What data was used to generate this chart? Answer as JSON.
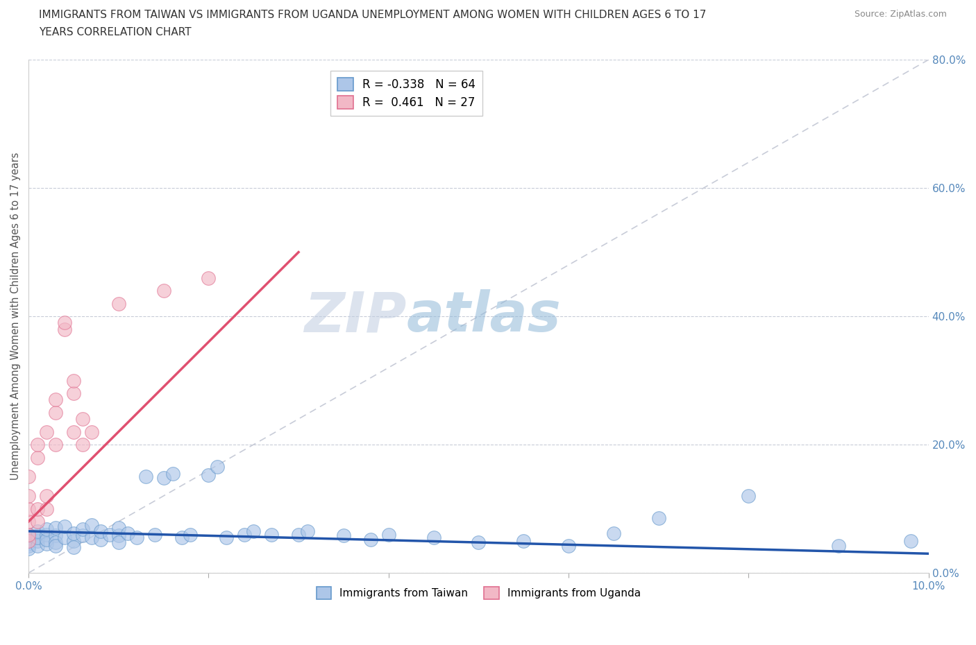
{
  "title_line1": "IMMIGRANTS FROM TAIWAN VS IMMIGRANTS FROM UGANDA UNEMPLOYMENT AMONG WOMEN WITH CHILDREN AGES 6 TO 17",
  "title_line2": "YEARS CORRELATION CHART",
  "source_text": "Source: ZipAtlas.com",
  "ylabel": "Unemployment Among Women with Children Ages 6 to 17 years",
  "xlim": [
    0.0,
    0.1
  ],
  "ylim": [
    0.0,
    0.8
  ],
  "xticks": [
    0.0,
    0.02,
    0.04,
    0.06,
    0.08,
    0.1
  ],
  "yticks": [
    0.0,
    0.2,
    0.4,
    0.6,
    0.8
  ],
  "xticklabels": [
    "0.0%",
    "",
    "",
    "",
    "",
    "10.0%"
  ],
  "yticklabels_right": [
    "0.0%",
    "20.0%",
    "40.0%",
    "60.0%",
    "80.0%"
  ],
  "taiwan_fill_color": "#adc6e8",
  "taiwan_edge_color": "#6699cc",
  "uganda_fill_color": "#f2b8c6",
  "uganda_edge_color": "#e07090",
  "taiwan_line_color": "#2255aa",
  "uganda_line_color": "#e05070",
  "diag_line_color": "#c8ccd8",
  "taiwan_R": -0.338,
  "taiwan_N": 64,
  "uganda_R": 0.461,
  "uganda_N": 27,
  "watermark_zip": "ZIP",
  "watermark_atlas": "atlas",
  "legend_taiwan_label": "Immigrants from Taiwan",
  "legend_uganda_label": "Immigrants from Uganda",
  "taiwan_x": [
    0.0,
    0.0,
    0.0,
    0.0,
    0.0,
    0.0,
    0.0,
    0.0,
    0.001,
    0.001,
    0.001,
    0.001,
    0.001,
    0.002,
    0.002,
    0.002,
    0.002,
    0.003,
    0.003,
    0.003,
    0.003,
    0.004,
    0.004,
    0.005,
    0.005,
    0.005,
    0.006,
    0.006,
    0.007,
    0.007,
    0.008,
    0.008,
    0.009,
    0.01,
    0.01,
    0.01,
    0.011,
    0.012,
    0.013,
    0.014,
    0.015,
    0.016,
    0.017,
    0.018,
    0.02,
    0.021,
    0.022,
    0.024,
    0.025,
    0.027,
    0.03,
    0.031,
    0.035,
    0.038,
    0.04,
    0.045,
    0.05,
    0.055,
    0.06,
    0.065,
    0.07,
    0.08,
    0.09,
    0.098
  ],
  "taiwan_y": [
    0.05,
    0.048,
    0.052,
    0.055,
    0.045,
    0.06,
    0.042,
    0.038,
    0.058,
    0.05,
    0.042,
    0.055,
    0.065,
    0.06,
    0.045,
    0.052,
    0.068,
    0.058,
    0.048,
    0.07,
    0.042,
    0.055,
    0.072,
    0.05,
    0.062,
    0.04,
    0.058,
    0.068,
    0.055,
    0.075,
    0.052,
    0.065,
    0.06,
    0.058,
    0.048,
    0.07,
    0.062,
    0.055,
    0.15,
    0.06,
    0.148,
    0.155,
    0.055,
    0.06,
    0.152,
    0.165,
    0.055,
    0.06,
    0.065,
    0.06,
    0.06,
    0.065,
    0.058,
    0.052,
    0.06,
    0.055,
    0.048,
    0.05,
    0.042,
    0.062,
    0.085,
    0.12,
    0.042,
    0.05
  ],
  "uganda_x": [
    0.0,
    0.0,
    0.0,
    0.0,
    0.0,
    0.0,
    0.001,
    0.001,
    0.001,
    0.001,
    0.002,
    0.002,
    0.002,
    0.003,
    0.003,
    0.003,
    0.004,
    0.004,
    0.005,
    0.005,
    0.005,
    0.006,
    0.006,
    0.007,
    0.01,
    0.015,
    0.02
  ],
  "uganda_y": [
    0.05,
    0.06,
    0.08,
    0.1,
    0.12,
    0.15,
    0.08,
    0.1,
    0.18,
    0.2,
    0.1,
    0.12,
    0.22,
    0.2,
    0.25,
    0.27,
    0.38,
    0.39,
    0.22,
    0.28,
    0.3,
    0.2,
    0.24,
    0.22,
    0.42,
    0.44,
    0.46
  ]
}
